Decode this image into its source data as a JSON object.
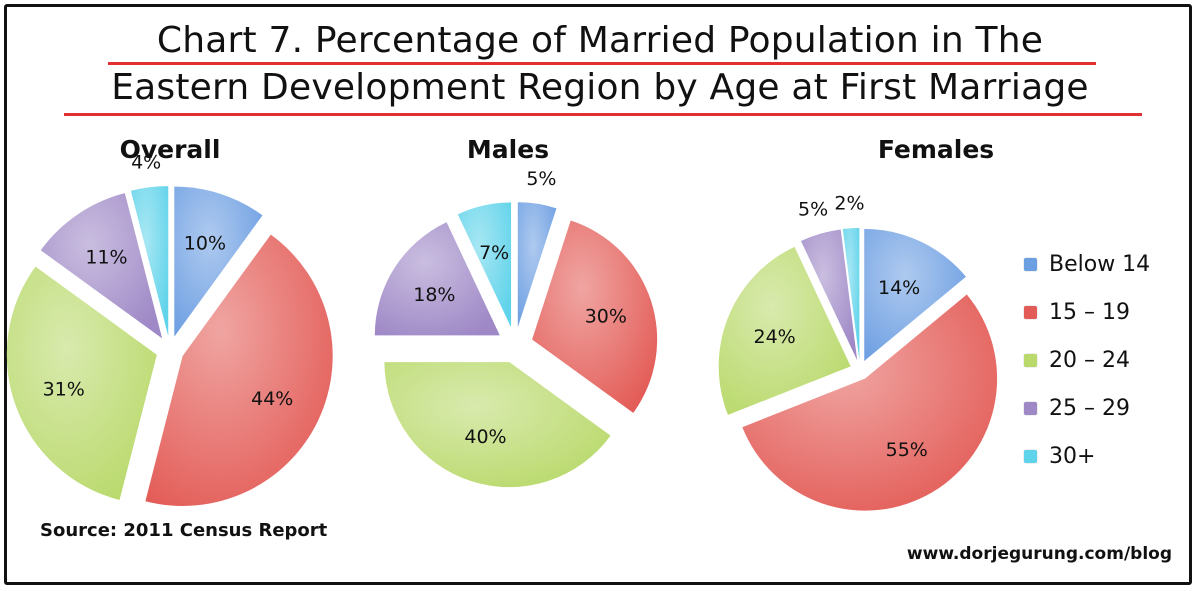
{
  "title": {
    "line1": "Chart 7. Percentage of Married Population in The",
    "line2": "Eastern Development Region by Age at First Marriage"
  },
  "source": "Source: 2011 Census Report",
  "website": "www.dorjegurung.com/blog",
  "colors": {
    "Below 14": "#6c9ee2",
    "15 – 19": "#e35b56",
    "20 – 24": "#b9d96b",
    "25 – 29": "#9e88c6",
    "30+": "#5fd3ea"
  },
  "legend": [
    {
      "label": "Below 14",
      "color": "#6c9ee2"
    },
    {
      "label": "15 – 19",
      "color": "#e35b56"
    },
    {
      "label": "20 – 24",
      "color": "#b9d96b"
    },
    {
      "label": "25 – 29",
      "color": "#9e88c6"
    },
    {
      "label": "30+",
      "color": "#5fd3ea"
    }
  ],
  "chart_data": [
    {
      "type": "pie",
      "title": "Overall",
      "categories": [
        "Below 14",
        "15 – 19",
        "20 – 24",
        "25 – 29",
        "30+"
      ],
      "values": [
        10,
        44,
        31,
        11,
        4
      ],
      "labels": [
        "10%",
        "44%",
        "31%",
        "11%",
        "4%"
      ],
      "exploded": true
    },
    {
      "type": "pie",
      "title": "Males",
      "categories": [
        "Below 14",
        "15 – 19",
        "20 – 24",
        "25 – 29",
        "30+"
      ],
      "values": [
        5,
        30,
        40,
        18,
        7
      ],
      "labels": [
        "5%",
        "30%",
        "40%",
        "18%",
        "7%"
      ],
      "exploded": true
    },
    {
      "type": "pie",
      "title": "Females",
      "categories": [
        "Below 14",
        "15 – 19",
        "20 – 24",
        "25 – 29",
        "30+"
      ],
      "values": [
        14,
        55,
        24,
        5,
        2
      ],
      "labels": [
        "14%",
        "55%",
        "24%",
        "5%",
        "2%"
      ],
      "exploded": true
    }
  ]
}
